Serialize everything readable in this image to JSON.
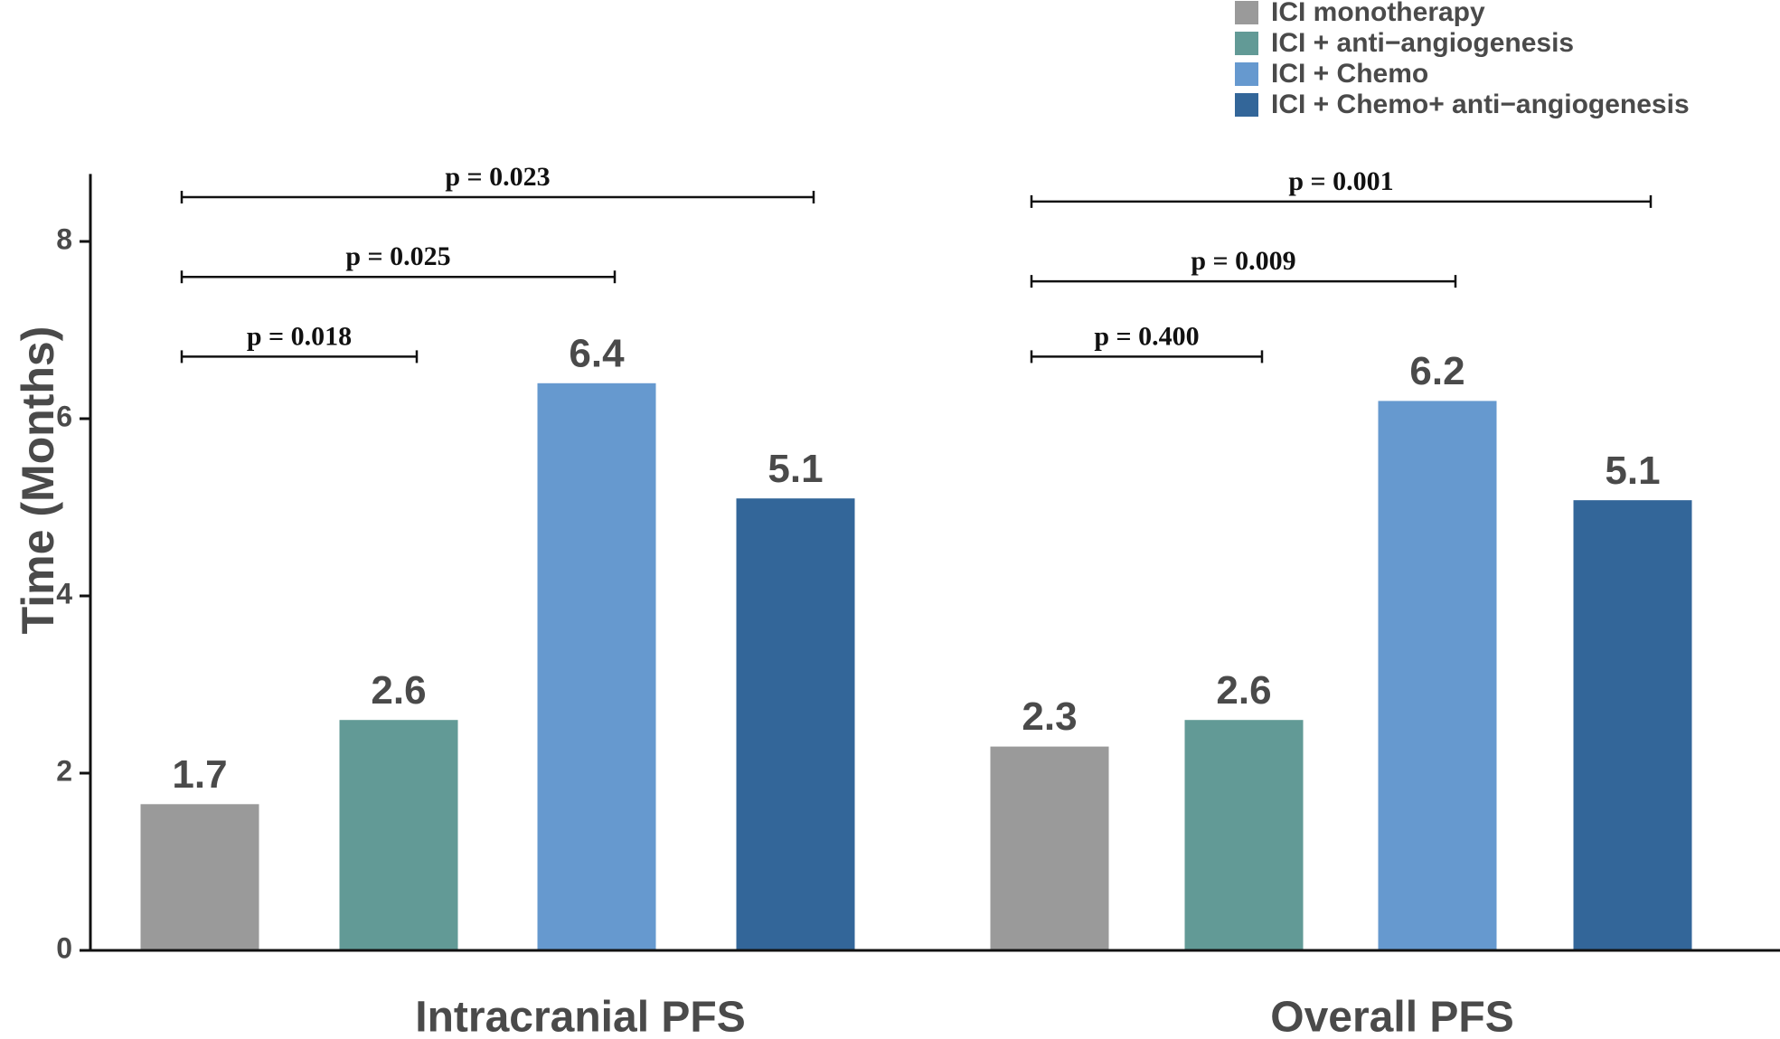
{
  "chart_data": {
    "type": "bar",
    "title": "",
    "xlabel": "",
    "ylabel": "Time (Months)",
    "ylim": [
      0,
      8.7
    ],
    "yticks": [
      0,
      2,
      4,
      6,
      8
    ],
    "categories": [
      "Intracranial PFS",
      "Overall PFS"
    ],
    "series": [
      {
        "name": "ICI monotherapy",
        "color": "#9a9a9a",
        "values": [
          1.65,
          2.3
        ],
        "labels": [
          "1.7",
          "2.3"
        ]
      },
      {
        "name": "ICI + anti−angiogenesis",
        "color": "#629a96",
        "values": [
          2.6,
          2.6
        ],
        "labels": [
          "2.6",
          "2.6"
        ]
      },
      {
        "name": "ICI + Chemo",
        "color": "#6699cf",
        "values": [
          6.4,
          6.2
        ],
        "labels": [
          "6.4",
          "6.2"
        ]
      },
      {
        "name": "ICI + Chemo+ anti−angiogenesis",
        "color": "#336699",
        "values": [
          5.1,
          5.08
        ],
        "labels": [
          "5.1",
          "5.1"
        ]
      }
    ],
    "comparisons": [
      {
        "group": 0,
        "from": 0,
        "to": 1,
        "level": 6.7,
        "label": "p = 0.018"
      },
      {
        "group": 0,
        "from": 0,
        "to": 2,
        "level": 7.6,
        "label": "p = 0.025"
      },
      {
        "group": 0,
        "from": 0,
        "to": 3,
        "level": 8.5,
        "label": "p = 0.023"
      },
      {
        "group": 1,
        "from": 0,
        "to": 1,
        "level": 6.7,
        "label": "p = 0.400"
      },
      {
        "group": 1,
        "from": 0,
        "to": 2,
        "level": 7.55,
        "label": "p = 0.009"
      },
      {
        "group": 1,
        "from": 0,
        "to": 3,
        "level": 8.45,
        "label": "p = 0.001"
      }
    ],
    "legend_position": "top-right"
  }
}
